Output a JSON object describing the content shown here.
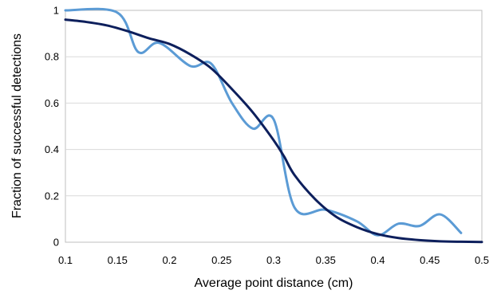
{
  "chart_data": {
    "type": "line",
    "title": "",
    "xlabel": "Average point distance (cm)",
    "ylabel": "Fraction of successful detections",
    "xlim": [
      0.1,
      0.5
    ],
    "ylim": [
      0,
      1
    ],
    "x_ticks": [
      "0.1",
      "0.15",
      "0.2",
      "0.25",
      "0.3",
      "0.35",
      "0.4",
      "0.45",
      "0.5"
    ],
    "y_ticks": [
      "0",
      "0.2",
      "0.4",
      "0.6",
      "0.8",
      "1"
    ],
    "grid": "horizontal",
    "legend": "none",
    "series": [
      {
        "color": "#5b9bd5",
        "smooth": true,
        "points": [
          [
            0.1,
            1.0
          ],
          [
            0.15,
            0.99
          ],
          [
            0.17,
            0.82
          ],
          [
            0.19,
            0.86
          ],
          [
            0.22,
            0.76
          ],
          [
            0.24,
            0.77
          ],
          [
            0.26,
            0.6
          ],
          [
            0.28,
            0.49
          ],
          [
            0.3,
            0.53
          ],
          [
            0.32,
            0.15
          ],
          [
            0.35,
            0.14
          ],
          [
            0.38,
            0.09
          ],
          [
            0.4,
            0.03
          ],
          [
            0.42,
            0.08
          ],
          [
            0.44,
            0.07
          ],
          [
            0.46,
            0.12
          ],
          [
            0.48,
            0.04
          ]
        ]
      },
      {
        "color": "#0d1f5c",
        "smooth": true,
        "points": [
          [
            0.1,
            0.96
          ],
          [
            0.12,
            0.95
          ],
          [
            0.14,
            0.935
          ],
          [
            0.16,
            0.91
          ],
          [
            0.18,
            0.88
          ],
          [
            0.2,
            0.855
          ],
          [
            0.22,
            0.81
          ],
          [
            0.24,
            0.75
          ],
          [
            0.26,
            0.66
          ],
          [
            0.28,
            0.56
          ],
          [
            0.3,
            0.44
          ],
          [
            0.31,
            0.37
          ],
          [
            0.32,
            0.29
          ],
          [
            0.34,
            0.185
          ],
          [
            0.36,
            0.11
          ],
          [
            0.38,
            0.065
          ],
          [
            0.4,
            0.035
          ],
          [
            0.42,
            0.018
          ],
          [
            0.44,
            0.009
          ],
          [
            0.46,
            0.004
          ],
          [
            0.48,
            0.002
          ],
          [
            0.5,
            0.001
          ]
        ]
      }
    ]
  }
}
